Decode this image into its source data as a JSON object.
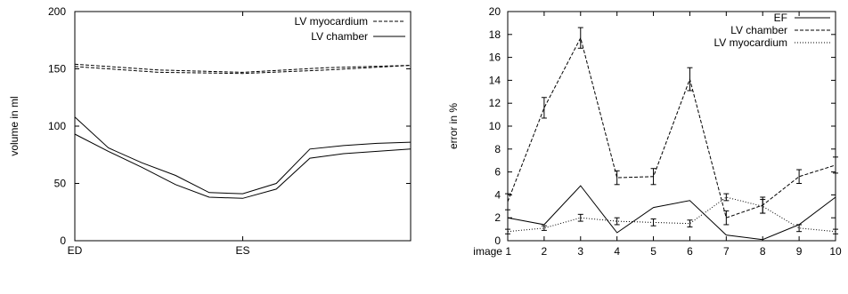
{
  "chart_data": [
    {
      "type": "line",
      "xlabel": "",
      "ylabel": "volume in ml",
      "ylim": [
        0,
        200
      ],
      "yticks": [
        0,
        50,
        100,
        150,
        200
      ],
      "xlim": [
        0,
        10
      ],
      "xticks": [
        {
          "value": 0,
          "label": "ED"
        },
        {
          "value": 5,
          "label": "ES"
        }
      ],
      "grid": false,
      "legend_position": "top-right",
      "series": [
        {
          "name": "LV myocardium",
          "dash": "4,2",
          "x": [
            0,
            2.5,
            5,
            7.5,
            10
          ],
          "y": [
            154,
            149,
            147,
            151,
            153
          ]
        },
        {
          "name": "",
          "dash": "4,2",
          "x": [
            0,
            2.5,
            5,
            7.5,
            10
          ],
          "y": [
            152,
            147,
            146,
            149,
            153
          ]
        },
        {
          "name": "LV chamber",
          "dash": "",
          "x": [
            0,
            1,
            2,
            3,
            4,
            5,
            6,
            7,
            8,
            9,
            10
          ],
          "y": [
            108,
            81,
            68,
            57,
            42,
            41,
            50,
            80,
            83,
            85,
            86
          ]
        },
        {
          "name": "",
          "dash": "",
          "x": [
            0,
            1,
            2,
            3,
            4,
            5,
            6,
            7,
            8,
            9,
            10
          ],
          "y": [
            93,
            78,
            64,
            49,
            38,
            37,
            45,
            72,
            76,
            78,
            80
          ]
        }
      ]
    },
    {
      "type": "line",
      "xlabel": "",
      "ylabel": "error in %",
      "ylim": [
        0,
        20
      ],
      "yticks": [
        0,
        2,
        4,
        6,
        8,
        10,
        12,
        14,
        16,
        18,
        20
      ],
      "xlim": [
        1,
        10
      ],
      "categories": [
        "image 1",
        "2",
        "3",
        "4",
        "5",
        "6",
        "7",
        "8",
        "9",
        "10"
      ],
      "grid": false,
      "legend_position": "top-right",
      "series": [
        {
          "name": "EF",
          "dash": "",
          "errorbars": false,
          "values": [
            2.0,
            1.4,
            4.8,
            0.7,
            2.9,
            3.5,
            0.5,
            0.1,
            1.4,
            3.8
          ]
        },
        {
          "name": "LV chamber",
          "dash": "4,2",
          "errorbars": true,
          "values": [
            3.4,
            11.6,
            17.7,
            5.5,
            5.6,
            14.1,
            2.0,
            3.1,
            5.6,
            6.6
          ],
          "errors": [
            0.7,
            0.9,
            0.9,
            0.6,
            0.7,
            1.0,
            0.6,
            0.7,
            0.6,
            0.7
          ]
        },
        {
          "name": "LV myocardium",
          "dash": "1,2",
          "errorbars": true,
          "values": [
            0.8,
            1.1,
            2.0,
            1.7,
            1.6,
            1.5,
            3.8,
            3.0,
            1.1,
            0.8
          ],
          "errors": [
            0.2,
            0.2,
            0.3,
            0.3,
            0.3,
            0.3,
            0.3,
            0.6,
            0.3,
            0.2
          ]
        }
      ]
    }
  ]
}
